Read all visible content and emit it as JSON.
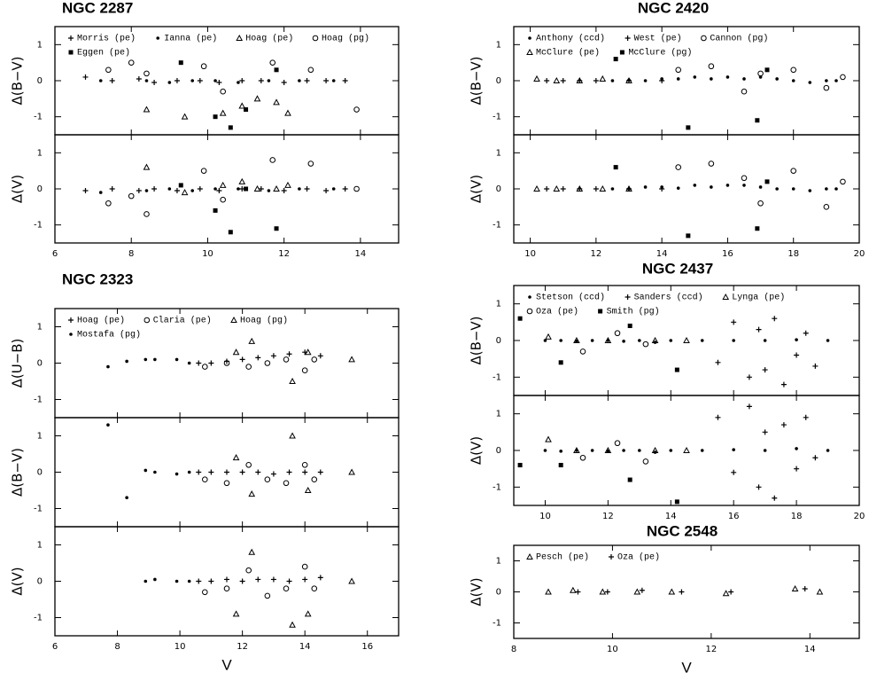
{
  "chart_data": [
    {
      "type": "scatter",
      "title": "NGC 2287",
      "xlim": [
        6,
        15
      ],
      "xticks": [
        6,
        8,
        10,
        12,
        14
      ],
      "panels": [
        {
          "ylabel": "Δ(B−V)",
          "ylim": [
            -1.5,
            1.5
          ],
          "yticks": [
            -1,
            0,
            1
          ]
        },
        {
          "ylabel": "Δ(V)",
          "ylim": [
            -1.5,
            1.5
          ],
          "yticks": [
            -1,
            0,
            1
          ]
        }
      ],
      "series": [
        {
          "name": "Morris (pe)",
          "marker": "plus",
          "x": [
            6.8,
            7.5,
            8.2,
            8.6,
            9.2,
            9.8,
            10.3,
            10.9,
            11.4,
            12.0,
            12.6,
            13.1,
            13.6
          ],
          "panels": [
            [
              0.1,
              0,
              0.05,
              -0.05,
              0,
              0,
              -0.05,
              0,
              0,
              -0.05,
              0,
              0,
              0
            ],
            [
              -0.05,
              0,
              -0.05,
              0,
              -0.05,
              0,
              -0.05,
              0,
              0,
              -0.05,
              0,
              -0.05,
              0
            ]
          ]
        },
        {
          "name": "Ianna (pe)",
          "marker": "dot",
          "x": [
            7.2,
            8.4,
            9.0,
            9.6,
            10.2,
            10.8,
            11.6,
            12.4,
            13.3
          ],
          "panels": [
            [
              0,
              0,
              -0.05,
              0,
              0,
              -0.05,
              0,
              0,
              0
            ],
            [
              -0.1,
              -0.05,
              0,
              -0.05,
              0,
              0,
              -0.05,
              0,
              0
            ]
          ]
        },
        {
          "name": "Hoag (pe)",
          "marker": "triangle",
          "x": [
            8.4,
            9.4,
            10.4,
            10.9,
            11.3,
            11.8,
            12.1
          ],
          "panels": [
            [
              -0.8,
              -1.0,
              -0.9,
              -0.7,
              -0.5,
              -0.6,
              -0.9
            ],
            [
              0.6,
              -0.1,
              0.1,
              0.2,
              0,
              0,
              0.1
            ]
          ]
        },
        {
          "name": "Hoag (pg)",
          "marker": "circle",
          "x": [
            7.4,
            8.0,
            8.4,
            9.9,
            10.4,
            11.7,
            12.7,
            13.9
          ],
          "panels": [
            [
              0.3,
              0.5,
              0.2,
              0.4,
              -0.3,
              0.5,
              0.3,
              -0.8
            ],
            [
              -0.4,
              -0.2,
              -0.7,
              0.5,
              -0.3,
              0.8,
              0.7,
              0
            ]
          ]
        },
        {
          "name": "Eggen (pe)",
          "marker": "square",
          "x": [
            9.3,
            10.2,
            10.6,
            11.0,
            11.8
          ],
          "panels": [
            [
              0.5,
              -1.0,
              -1.3,
              -0.8,
              0.3
            ],
            [
              0.1,
              -0.6,
              -1.2,
              0,
              -1.1
            ]
          ]
        }
      ]
    },
    {
      "type": "scatter",
      "title": "NGC 2420",
      "xlim": [
        9.5,
        20
      ],
      "xticks": [
        10,
        12,
        14,
        16,
        18,
        20
      ],
      "panels": [
        {
          "ylabel": "Δ(B−V)",
          "ylim": [
            -1.5,
            1.5
          ],
          "yticks": [
            -1,
            0,
            1
          ]
        },
        {
          "ylabel": "Δ(V)",
          "ylim": [
            -1.5,
            1.5
          ],
          "yticks": [
            -1,
            0,
            1
          ]
        }
      ],
      "series": [
        {
          "name": "Anthony (ccd)",
          "marker": "dot",
          "x": [
            12.5,
            13,
            13.5,
            14,
            14.5,
            15,
            15.5,
            16,
            16.5,
            17,
            17.5,
            18,
            18.5,
            19,
            19.3
          ],
          "panels": [
            [
              0,
              0.02,
              0,
              0.05,
              0.05,
              0.1,
              0.05,
              0.1,
              0.05,
              0.1,
              0.05,
              0,
              -0.05,
              0,
              0
            ],
            [
              0,
              0,
              0.05,
              0.05,
              0.02,
              0.1,
              0.05,
              0.1,
              0.1,
              0.05,
              0,
              0,
              -0.05,
              0,
              0
            ]
          ]
        },
        {
          "name": "West (pe)",
          "marker": "plus",
          "x": [
            10.5,
            11,
            11.5,
            12,
            13,
            14
          ],
          "panels": [
            [
              0,
              0,
              0,
              0,
              0,
              0
            ],
            [
              0,
              0,
              0,
              0,
              0,
              0
            ]
          ]
        },
        {
          "name": "Cannon (pg)",
          "marker": "circle",
          "x": [
            14.5,
            15.5,
            16.5,
            17,
            18,
            19,
            19.5
          ],
          "panels": [
            [
              0.3,
              0.4,
              -0.3,
              0.2,
              0.3,
              -0.2,
              0.1
            ],
            [
              0.6,
              0.7,
              0.3,
              -0.4,
              0.5,
              -0.5,
              0.2
            ]
          ]
        },
        {
          "name": "McClure (pe)",
          "marker": "triangle",
          "x": [
            10.2,
            10.8,
            11.5,
            12.2,
            13.0
          ],
          "panels": [
            [
              0.05,
              0,
              0,
              0.05,
              0
            ],
            [
              0,
              0,
              0,
              0,
              0
            ]
          ]
        },
        {
          "name": "McClure (pg)",
          "marker": "square",
          "x": [
            12.6,
            14.8,
            16.9,
            17.2
          ],
          "panels": [
            [
              0.6,
              -1.3,
              -1.1,
              0.3
            ],
            [
              0.6,
              -1.3,
              -1.1,
              0.2
            ]
          ]
        }
      ]
    },
    {
      "type": "scatter",
      "title": "NGC 2323",
      "xlabel": "V",
      "xlim": [
        6,
        17
      ],
      "xticks": [
        6,
        8,
        10,
        12,
        14,
        16
      ],
      "panels": [
        {
          "ylabel": "Δ(U−B)",
          "ylim": [
            -1.5,
            1.5
          ],
          "yticks": [
            -1,
            0,
            1
          ]
        },
        {
          "ylabel": "Δ(B−V)",
          "ylim": [
            -1.5,
            1.5
          ],
          "yticks": [
            -1,
            0,
            1
          ]
        },
        {
          "ylabel": "Δ(V)",
          "ylim": [
            -1.5,
            1.5
          ],
          "yticks": [
            -1,
            0,
            1
          ]
        }
      ],
      "series": [
        {
          "name": "Hoag (pe)",
          "marker": "plus",
          "x": [
            10.6,
            11,
            11.5,
            12,
            12.5,
            13,
            13.5,
            14,
            14.5
          ],
          "panels": [
            [
              0,
              0,
              0.05,
              0.1,
              0.15,
              0.2,
              0.25,
              0.3,
              0.2
            ],
            [
              0,
              0,
              0,
              0,
              0,
              -0.05,
              0,
              0,
              0
            ],
            [
              0,
              0,
              0.05,
              0,
              0.05,
              0.05,
              0,
              0.05,
              0.1
            ]
          ]
        },
        {
          "name": "Claria (pe)",
          "marker": "circle",
          "x": [
            10.8,
            11.5,
            12.2,
            12.8,
            13.4,
            14,
            14.3
          ],
          "panels": [
            [
              -0.1,
              0,
              -0.1,
              0,
              0.1,
              -0.2,
              0.1
            ],
            [
              -0.2,
              -0.3,
              0.2,
              -0.2,
              -0.3,
              0.2,
              -0.2
            ],
            [
              -0.3,
              -0.2,
              0.3,
              -0.4,
              -0.2,
              0.4,
              -0.2
            ]
          ]
        },
        {
          "name": "Hoag (pg)",
          "marker": "triangle",
          "x": [
            11.8,
            12.3,
            13.6,
            14.1,
            15.5
          ],
          "panels": [
            [
              0.3,
              0.6,
              -0.5,
              0.3,
              0.1
            ],
            [
              0.4,
              -0.6,
              1.0,
              -0.5,
              0
            ],
            [
              -0.9,
              0.8,
              -1.2,
              -0.9,
              0
            ]
          ]
        },
        {
          "name": "Mostafa (pg)",
          "marker": "dot",
          "x": [
            7.7,
            8.3,
            8.9,
            9.2,
            9.9,
            10.3
          ],
          "panels": [
            [
              -0.1,
              0.05,
              0.1,
              0.1,
              0.1,
              0
            ],
            [
              1.3,
              -0.7,
              0.05,
              0,
              -0.05,
              0
            ],
            [
              null,
              null,
              0,
              0.05,
              0,
              0
            ]
          ]
        }
      ]
    },
    {
      "type": "scatter",
      "title": "NGC 2437",
      "xlim": [
        9,
        20
      ],
      "xticks": [
        10,
        12,
        14,
        16,
        18,
        20
      ],
      "panels": [
        {
          "ylabel": "Δ(B−V)",
          "ylim": [
            -1.5,
            1.5
          ],
          "yticks": [
            -1,
            0,
            1
          ]
        },
        {
          "ylabel": "Δ(V)",
          "ylim": [
            -1.5,
            1.5
          ],
          "yticks": [
            -1,
            0,
            1
          ]
        }
      ],
      "series": [
        {
          "name": "Stetson (ccd)",
          "marker": "dot",
          "x": [
            10,
            10.5,
            11,
            11.5,
            12,
            12.5,
            13,
            13.5,
            14,
            15,
            16,
            17,
            18,
            19
          ],
          "panels": [
            [
              0,
              0,
              -0.02,
              0,
              0,
              -0.02,
              0,
              -0.05,
              0,
              0,
              0,
              0,
              0.02,
              0
            ],
            [
              0,
              -0.02,
              0,
              0,
              -0.02,
              0,
              0,
              -0.05,
              0,
              0,
              0.02,
              0,
              0.05,
              0
            ]
          ]
        },
        {
          "name": "Sanders (ccd)",
          "marker": "plus",
          "x": [
            15.5,
            16,
            16.5,
            16.8,
            17,
            17.3,
            17.6,
            18,
            18.3,
            18.6
          ],
          "panels": [
            [
              -0.6,
              0.5,
              -1.0,
              0.3,
              -0.8,
              0.6,
              -1.2,
              -0.4,
              0.2,
              -0.7
            ],
            [
              0.9,
              -0.6,
              1.2,
              -1.0,
              0.5,
              -1.3,
              0.7,
              -0.5,
              0.9,
              -0.2
            ]
          ]
        },
        {
          "name": "Lynga (pe)",
          "marker": "triangle",
          "x": [
            10.1,
            11,
            12,
            13.5,
            14.5
          ],
          "panels": [
            [
              0.1,
              0,
              0,
              0,
              0
            ],
            [
              0.3,
              0,
              0,
              0,
              0
            ]
          ]
        },
        {
          "name": "Oza (pe)",
          "marker": "circle",
          "x": [
            11.2,
            12.3,
            13.2
          ],
          "panels": [
            [
              -0.3,
              0.2,
              -0.1
            ],
            [
              -0.2,
              0.2,
              -0.3
            ]
          ]
        },
        {
          "name": "Smith (pg)",
          "marker": "square",
          "x": [
            9.2,
            10.5,
            12.7,
            14.2
          ],
          "panels": [
            [
              0.6,
              -0.6,
              0.4,
              -0.8
            ],
            [
              -0.4,
              -0.4,
              -0.8,
              -1.4
            ]
          ]
        }
      ]
    },
    {
      "type": "scatter",
      "title": "NGC 2548",
      "xlabel": "V",
      "xlim": [
        8,
        15
      ],
      "xticks": [
        8,
        10,
        12,
        14
      ],
      "panels": [
        {
          "ylabel": "Δ(V)",
          "ylim": [
            -1.5,
            1.5
          ],
          "yticks": [
            -1,
            0,
            1
          ]
        }
      ],
      "series": [
        {
          "name": "Pesch (pe)",
          "marker": "triangle",
          "x": [
            8.7,
            9.2,
            9.8,
            10.5,
            11.2,
            12.3,
            13.7,
            14.2
          ],
          "panels": [
            [
              0,
              0.05,
              0,
              0,
              0,
              -0.05,
              0.1,
              0
            ]
          ]
        },
        {
          "name": "Oza (pe)",
          "marker": "plus",
          "x": [
            9.3,
            9.9,
            10.6,
            11.4,
            12.4,
            13.9
          ],
          "panels": [
            [
              0,
              0,
              0.05,
              0,
              0,
              0.1
            ]
          ]
        }
      ]
    }
  ]
}
